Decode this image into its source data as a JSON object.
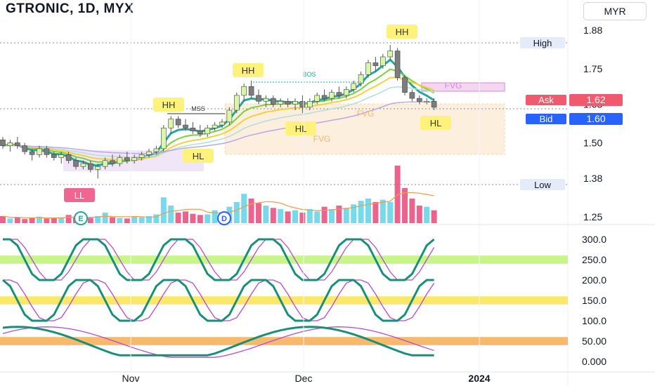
{
  "header": {
    "title": "GTRONIC, 1D, MYX",
    "currency": "MYR"
  },
  "colors": {
    "up": "#26a69a",
    "down": "#ef5350",
    "bid": "#2962ff",
    "ask": "#f05a6e"
  },
  "chart_data": {
    "type": "candlestick",
    "price_axis": {
      "ticks": [
        "1.88",
        "1.75",
        "1.63",
        "1.50",
        "1.38",
        "1.25"
      ],
      "ylim": [
        1.25,
        1.88
      ]
    },
    "x_labels": [
      "Nov",
      "Dec",
      "2024"
    ],
    "markers": [
      {
        "label": "High",
        "value": 1.83
      },
      {
        "label": "Low",
        "value": 1.38
      }
    ],
    "quote": {
      "ask_label": "Ask",
      "ask": "1.62",
      "bid_label": "Bid",
      "bid": "1.60"
    },
    "structure_labels": [
      "LL",
      "HH",
      "HL",
      "HH",
      "HL",
      "HH",
      "HL"
    ],
    "annotations": [
      "MSS",
      "BOS",
      "FVG",
      "FVG",
      "FVG"
    ],
    "event_markers": [
      "E",
      "D"
    ],
    "candles": [
      [
        1.51,
        1.52,
        1.48,
        1.49
      ],
      [
        1.49,
        1.51,
        1.47,
        1.5
      ],
      [
        1.5,
        1.52,
        1.48,
        1.49
      ],
      [
        1.49,
        1.5,
        1.46,
        1.47
      ],
      [
        1.47,
        1.48,
        1.44,
        1.46
      ],
      [
        1.46,
        1.49,
        1.45,
        1.48
      ],
      [
        1.48,
        1.49,
        1.45,
        1.46
      ],
      [
        1.46,
        1.47,
        1.44,
        1.45
      ],
      [
        1.45,
        1.47,
        1.43,
        1.46
      ],
      [
        1.46,
        1.47,
        1.43,
        1.44
      ],
      [
        1.44,
        1.45,
        1.41,
        1.42
      ],
      [
        1.42,
        1.44,
        1.41,
        1.43
      ],
      [
        1.43,
        1.44,
        1.4,
        1.41
      ],
      [
        1.41,
        1.43,
        1.38,
        1.42
      ],
      [
        1.42,
        1.45,
        1.41,
        1.44
      ],
      [
        1.44,
        1.46,
        1.42,
        1.43
      ],
      [
        1.43,
        1.46,
        1.42,
        1.45
      ],
      [
        1.45,
        1.47,
        1.43,
        1.44
      ],
      [
        1.44,
        1.46,
        1.43,
        1.45
      ],
      [
        1.45,
        1.47,
        1.44,
        1.46
      ],
      [
        1.46,
        1.48,
        1.45,
        1.47
      ],
      [
        1.47,
        1.49,
        1.46,
        1.48
      ],
      [
        1.48,
        1.56,
        1.47,
        1.55
      ],
      [
        1.55,
        1.59,
        1.53,
        1.58
      ],
      [
        1.58,
        1.59,
        1.55,
        1.56
      ],
      [
        1.56,
        1.58,
        1.54,
        1.55
      ],
      [
        1.55,
        1.57,
        1.53,
        1.54
      ],
      [
        1.54,
        1.56,
        1.52,
        1.53
      ],
      [
        1.53,
        1.56,
        1.52,
        1.55
      ],
      [
        1.55,
        1.57,
        1.54,
        1.56
      ],
      [
        1.56,
        1.58,
        1.55,
        1.57
      ],
      [
        1.57,
        1.62,
        1.56,
        1.61
      ],
      [
        1.61,
        1.67,
        1.6,
        1.66
      ],
      [
        1.66,
        1.7,
        1.64,
        1.69
      ],
      [
        1.69,
        1.71,
        1.65,
        1.66
      ],
      [
        1.66,
        1.68,
        1.63,
        1.64
      ],
      [
        1.64,
        1.66,
        1.62,
        1.65
      ],
      [
        1.65,
        1.66,
        1.62,
        1.63
      ],
      [
        1.63,
        1.65,
        1.62,
        1.64
      ],
      [
        1.64,
        1.65,
        1.62,
        1.63
      ],
      [
        1.63,
        1.65,
        1.61,
        1.64
      ],
      [
        1.64,
        1.66,
        1.6,
        1.62
      ],
      [
        1.62,
        1.65,
        1.61,
        1.64
      ],
      [
        1.64,
        1.67,
        1.63,
        1.66
      ],
      [
        1.66,
        1.68,
        1.64,
        1.65
      ],
      [
        1.65,
        1.68,
        1.64,
        1.67
      ],
      [
        1.67,
        1.69,
        1.65,
        1.66
      ],
      [
        1.66,
        1.69,
        1.65,
        1.68
      ],
      [
        1.68,
        1.71,
        1.67,
        1.7
      ],
      [
        1.7,
        1.74,
        1.69,
        1.73
      ],
      [
        1.73,
        1.78,
        1.72,
        1.77
      ],
      [
        1.77,
        1.79,
        1.74,
        1.76
      ],
      [
        1.76,
        1.8,
        1.75,
        1.79
      ],
      [
        1.79,
        1.83,
        1.78,
        1.81
      ],
      [
        1.81,
        1.82,
        1.71,
        1.72
      ],
      [
        1.72,
        1.73,
        1.66,
        1.67
      ],
      [
        1.67,
        1.68,
        1.64,
        1.65
      ],
      [
        1.65,
        1.66,
        1.63,
        1.64
      ],
      [
        1.64,
        1.65,
        1.63,
        1.64
      ],
      [
        1.64,
        1.65,
        1.61,
        1.62
      ]
    ],
    "volume": [
      12,
      8,
      10,
      7,
      9,
      11,
      8,
      9,
      10,
      14,
      10,
      8,
      9,
      12,
      18,
      10,
      9,
      8,
      11,
      10,
      12,
      15,
      44,
      30,
      18,
      20,
      16,
      14,
      15,
      22,
      18,
      28,
      36,
      50,
      42,
      34,
      30,
      26,
      24,
      20,
      22,
      18,
      24,
      20,
      28,
      24,
      30,
      26,
      32,
      38,
      42,
      36,
      40,
      36,
      98,
      60,
      42,
      30,
      28,
      22
    ]
  },
  "oscillators": {
    "axis_ticks": [
      "300.0",
      "250.0",
      "200.0",
      "150.0",
      "100.0",
      "50.00",
      "0.000"
    ]
  }
}
